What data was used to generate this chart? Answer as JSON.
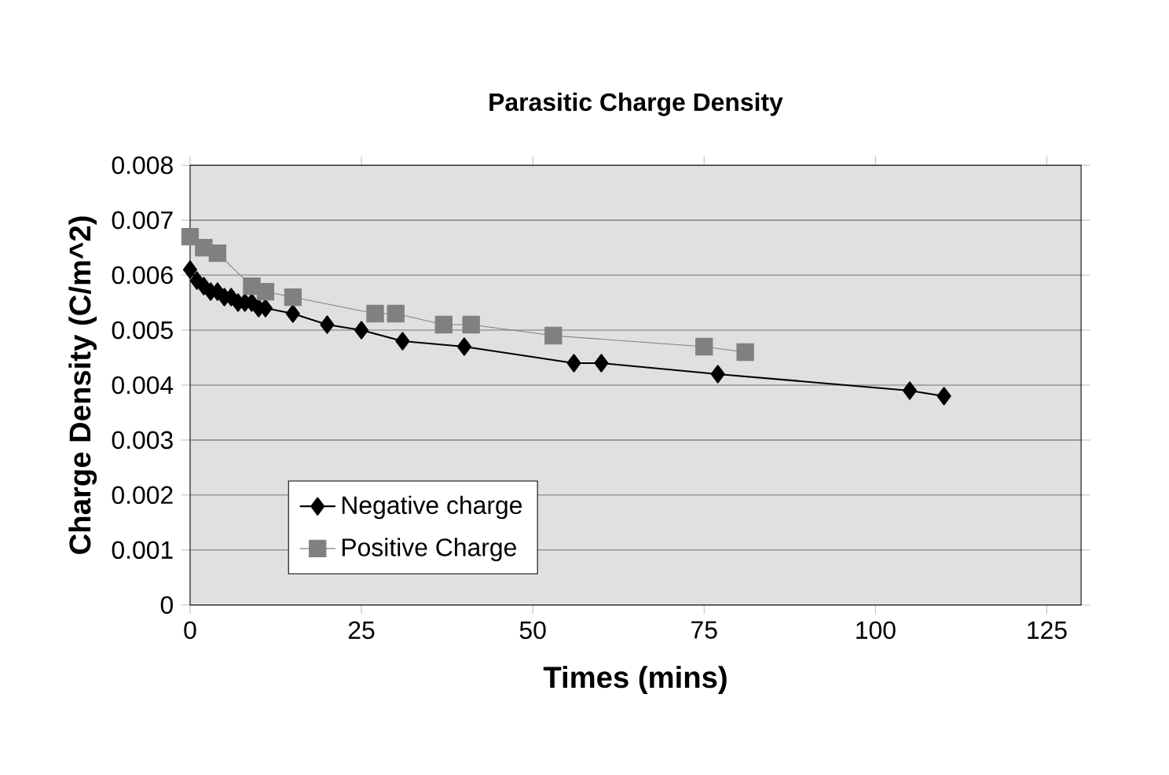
{
  "chart_data": {
    "type": "line",
    "title": "Parasitic Charge Density",
    "xlabel": "Times (mins)",
    "ylabel": "Charge Density (C/m^2)",
    "xlim": [
      0,
      130
    ],
    "xticks": [
      0,
      25,
      50,
      75,
      100,
      125
    ],
    "ylim": [
      0,
      0.008
    ],
    "yticks": [
      0,
      0.001,
      0.002,
      0.003,
      0.004,
      0.005,
      0.006,
      0.007,
      0.008
    ],
    "grid": "y",
    "legend": "bottom left",
    "series": [
      {
        "name": "Negative charge",
        "color": "#000000",
        "marker": "diamond",
        "x": [
          0,
          1,
          2,
          3,
          4,
          5,
          6,
          7,
          8,
          9,
          10,
          11,
          15,
          20,
          25,
          31,
          40,
          56,
          60,
          77,
          105,
          110
        ],
        "values": [
          0.0061,
          0.0059,
          0.0058,
          0.0057,
          0.0057,
          0.0056,
          0.0056,
          0.0055,
          0.0055,
          0.0055,
          0.0054,
          0.0054,
          0.0053,
          0.0051,
          0.005,
          0.0048,
          0.0047,
          0.0044,
          0.0044,
          0.0042,
          0.0039,
          0.0038
        ]
      },
      {
        "name": "Positive Charge",
        "color": "#808080",
        "marker": "square",
        "x": [
          0,
          2,
          4,
          9,
          11,
          15,
          27,
          30,
          37,
          41,
          53,
          75,
          81
        ],
        "values": [
          0.0067,
          0.0065,
          0.0064,
          0.0058,
          0.0057,
          0.0056,
          0.0053,
          0.0053,
          0.0051,
          0.0051,
          0.0049,
          0.0047,
          0.0046
        ]
      }
    ]
  }
}
